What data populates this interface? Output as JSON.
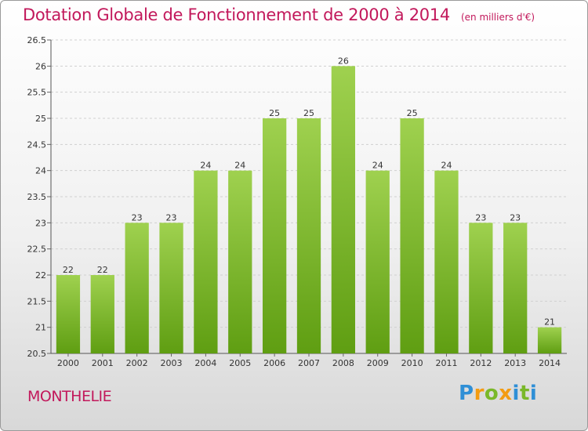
{
  "header": {
    "title": "Dotation Globale de Fonctionnement de 2000 à 2014",
    "unit": "(en milliers d'€)"
  },
  "footer": {
    "commune": "MONTHELIE",
    "logo_text": "Proxiti"
  },
  "colors": {
    "title": "#c2185b",
    "bar_top": "#9fd14f",
    "bar_bottom": "#5f9e12",
    "grid": "#d0d0d0"
  },
  "chart_data": {
    "type": "bar",
    "title": "Dotation Globale de Fonctionnement de 2000 à 2014",
    "xlabel": "",
    "ylabel": "",
    "categories": [
      "2000",
      "2001",
      "2002",
      "2003",
      "2004",
      "2005",
      "2006",
      "2007",
      "2008",
      "2009",
      "2010",
      "2011",
      "2012",
      "2013",
      "2014"
    ],
    "values": [
      22,
      22,
      23,
      23,
      24,
      24,
      25,
      25,
      26,
      24,
      25,
      24,
      23,
      23,
      21
    ],
    "labels": [
      "22",
      "22",
      "23",
      "23",
      "24",
      "24",
      "25",
      "25",
      "26",
      "24",
      "25",
      "24",
      "23",
      "23",
      "21"
    ],
    "ylim": [
      20.5,
      26.5
    ],
    "yticks": [
      20.5,
      21,
      21.5,
      22,
      22.5,
      23,
      23.5,
      24,
      24.5,
      25,
      25.5,
      26,
      26.5
    ],
    "ytick_labels": [
      "20.5",
      "21",
      "21.5",
      "22",
      "22.5",
      "23",
      "23.5",
      "24",
      "24.5",
      "25",
      "25.5",
      "26",
      "26.5"
    ],
    "grid": true
  }
}
